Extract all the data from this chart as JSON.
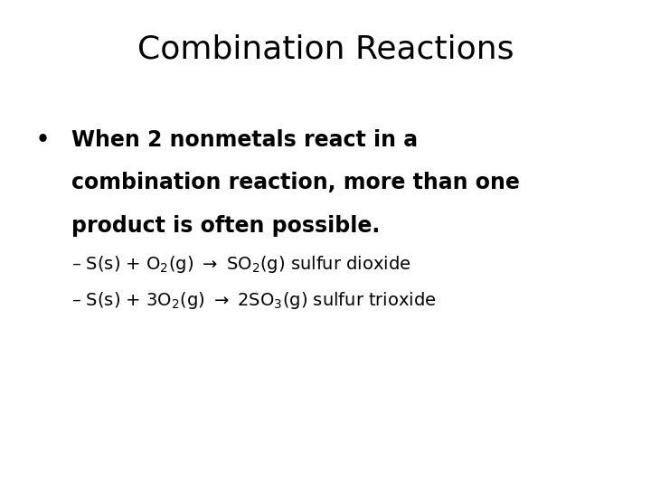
{
  "title": "Combination Reactions",
  "background_color": "#ffffff",
  "title_fontsize": 26,
  "title_font": "DejaVu Sans",
  "bullet_text_line1": "When 2 nonmetals react in a",
  "bullet_text_line2": "combination reaction, more than one",
  "bullet_text_line3": "product is often possible.",
  "bullet_fontsize": 17,
  "sub_fontsize": 14,
  "title_color": "#000000",
  "text_color": "#000000",
  "sub_line1": "– S(s) + O$_2$(g) $\\rightarrow$ SO$_2$(g) sulfur dioxide",
  "sub_line2": "– S(s) + 3O$_2$(g) $\\rightarrow$ 2SO$_3$(g) sulfur trioxide"
}
